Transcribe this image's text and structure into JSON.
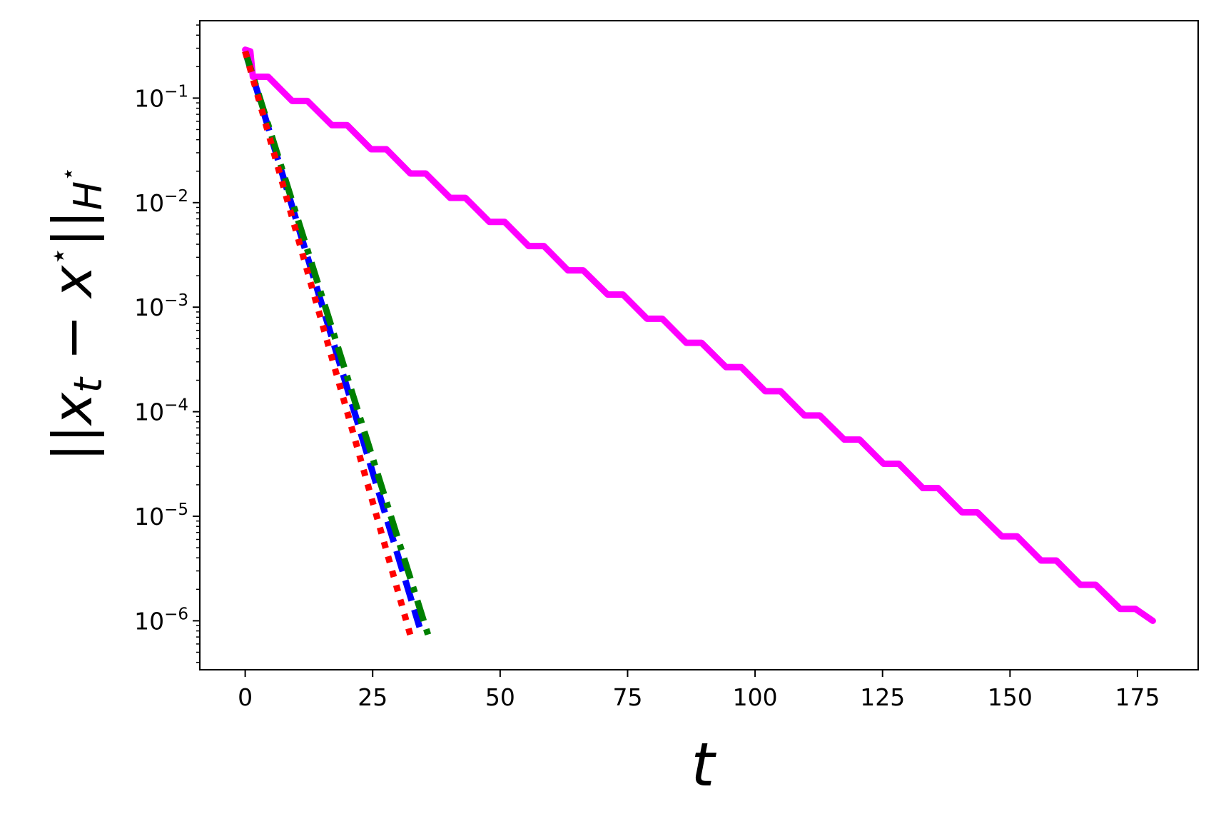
{
  "chart_data": {
    "type": "line",
    "xlabel": "t",
    "ylabel": [
      "||",
      "x",
      "t",
      " − ",
      "x",
      "⋆",
      "||",
      "H",
      "⋆"
    ],
    "yscale": "log",
    "xlim": [
      -8.9,
      186.9
    ],
    "ylim": [
      3.4e-07,
      0.55
    ],
    "xticks": [
      0,
      25,
      50,
      75,
      100,
      125,
      150,
      175
    ],
    "yticks": [
      {
        "value": 1e-06,
        "label": "10",
        "exponent": "−6"
      },
      {
        "value": 1e-05,
        "label": "10",
        "exponent": "−5"
      },
      {
        "value": 0.0001,
        "label": "10",
        "exponent": "−4"
      },
      {
        "value": 0.001,
        "label": "10",
        "exponent": "−3"
      },
      {
        "value": 0.01,
        "label": "10",
        "exponent": "−2"
      },
      {
        "value": 0.1,
        "label": "10",
        "exponent": "−1"
      }
    ],
    "yminorticks": [
      4e-07,
      5e-07,
      6e-07,
      7e-07,
      8e-07,
      9e-07,
      2e-06,
      3e-06,
      4e-06,
      5e-06,
      6e-06,
      7e-06,
      8e-06,
      9e-06,
      2e-05,
      3e-05,
      4e-05,
      5e-05,
      6e-05,
      7e-05,
      8e-05,
      9e-05,
      0.0002,
      0.0003,
      0.0004,
      0.0005,
      0.0006,
      0.0007,
      0.0008,
      0.0009,
      0.002,
      0.003,
      0.004,
      0.005,
      0.006,
      0.007,
      0.008,
      0.009,
      0.02,
      0.03,
      0.04,
      0.05,
      0.06,
      0.07,
      0.08,
      0.09,
      0.2,
      0.3,
      0.4,
      0.5
    ],
    "series": [
      {
        "color": "#ff00ff",
        "linestyle": "solid",
        "x": [
          0,
          1,
          1.5,
          4.5,
          9.2,
          12.2,
          17.0,
          20.0,
          24.7,
          27.7,
          32.4,
          35.4,
          40.2,
          43.2,
          47.9,
          50.9,
          55.6,
          58.6,
          63.3,
          66.3,
          71.1,
          74.1,
          78.8,
          81.8,
          86.5,
          89.5,
          94.3,
          97.3,
          102.0,
          105.0,
          109.7,
          112.7,
          117.5,
          120.5,
          125.2,
          128.2,
          132.9,
          135.9,
          140.6,
          143.6,
          148.4,
          151.4,
          156.1,
          159.1,
          163.8,
          166.8,
          171.6,
          174.6,
          178
        ],
        "values": [
          0.29,
          0.28,
          0.16,
          0.16,
          0.094,
          0.094,
          0.0551,
          0.0551,
          0.0324,
          0.0324,
          0.019,
          0.019,
          0.0111,
          0.0111,
          0.00654,
          0.00654,
          0.00384,
          0.00384,
          0.00225,
          0.00225,
          0.00132,
          0.00132,
          0.000776,
          0.000776,
          0.000456,
          0.000456,
          0.000267,
          0.000267,
          0.000157,
          0.000157,
          9.2e-05,
          9.2e-05,
          5.41e-05,
          5.41e-05,
          3.18e-05,
          3.18e-05,
          1.86e-05,
          1.86e-05,
          1.09e-05,
          1.09e-05,
          6.42e-06,
          6.42e-06,
          3.77e-06,
          3.77e-06,
          2.21e-06,
          2.21e-06,
          1.3e-06,
          1.3e-06,
          1e-06
        ]
      },
      {
        "color": "#0000ff",
        "linestyle": "dashed",
        "x": [
          0,
          34.2
        ],
        "values": [
          0.28,
          8.7e-07
        ]
      },
      {
        "color": "#008000",
        "linestyle": "dashdot",
        "x": [
          0,
          36
        ],
        "values": [
          0.28,
          7e-07
        ]
      },
      {
        "color": "#ff0000",
        "linestyle": "dotted",
        "x": [
          0,
          32.6
        ],
        "values": [
          0.28,
          6.7e-07
        ]
      }
    ]
  }
}
